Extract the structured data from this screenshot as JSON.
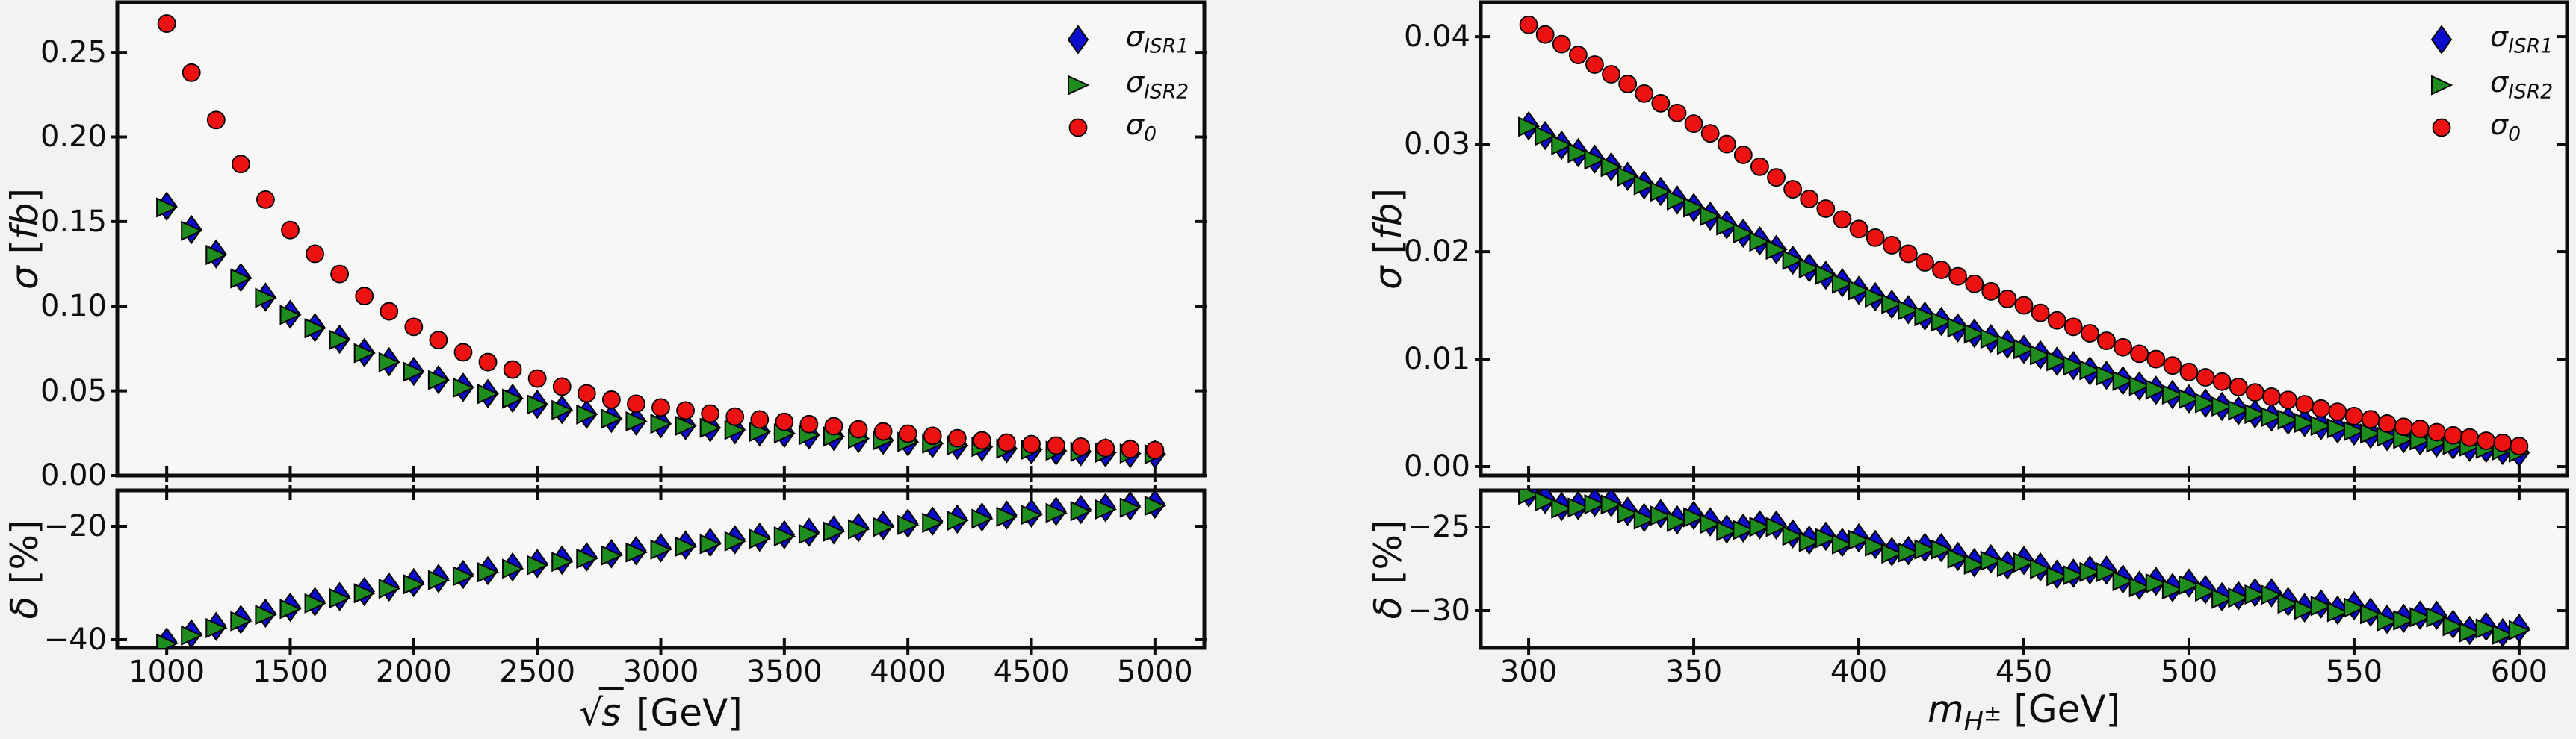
{
  "figure": {
    "background": "#f2f2f1",
    "axes_background": "#f7f7f6"
  },
  "colors": {
    "sigma_isr1": "#0a0ccd",
    "sigma_isr2": "#1f8c1f",
    "sigma0": "#ec1212",
    "marker_edge": "#000000",
    "axis": "#0d0d0d"
  },
  "legend": {
    "items": [
      {
        "sym": "σ",
        "sub": "ISR1",
        "series": "sigma_isr1",
        "marker": "diamond"
      },
      {
        "sym": "σ",
        "sub": "ISR2",
        "series": "sigma_isr2",
        "marker": "triangle"
      },
      {
        "sym": "σ",
        "sub": "0",
        "series": "sigma0",
        "marker": "circle"
      }
    ]
  },
  "chart_data": [
    {
      "type": "scatter",
      "panel": "left",
      "title": "",
      "xlabel": {
        "kind": "sqrt",
        "var": "s",
        "unit": "[GeV]"
      },
      "ylabel_main": {
        "sym": "σ",
        "unit": "[fb]"
      },
      "ylabel_ratio": {
        "sym": "δ",
        "unit": "[%]"
      },
      "xlim": [
        800,
        5200
      ],
      "ylim_main": [
        0.0,
        0.2796
      ],
      "ylim_ratio": [
        -41.45,
        -13.68
      ],
      "xticks": {
        "values": [
          1000,
          1500,
          2000,
          2500,
          3000,
          3500,
          4000,
          4500,
          5000
        ],
        "labels": [
          "1000",
          "1500",
          "2000",
          "2500",
          "3000",
          "3500",
          "4000",
          "4500",
          "5000"
        ]
      },
      "yticks_main": {
        "values": [
          0.25,
          0.2,
          0.15,
          0.1,
          0.05,
          0.0
        ],
        "labels": [
          "0.25",
          "0.20",
          "0.15",
          "0.10",
          "0.05",
          "0.00"
        ]
      },
      "yticks_ratio": {
        "values": [
          -20,
          -40
        ],
        "labels": [
          "−20",
          "−40"
        ]
      },
      "x": [
        1000,
        1100,
        1200,
        1300,
        1400,
        1500,
        1600,
        1700,
        1800,
        1900,
        2000,
        2100,
        2200,
        2300,
        2400,
        2500,
        2600,
        2700,
        2800,
        2900,
        3000,
        3100,
        3200,
        3300,
        3400,
        3500,
        3600,
        3700,
        3800,
        3900,
        4000,
        4100,
        4200,
        4300,
        4400,
        4500,
        4600,
        4700,
        4800,
        4900,
        5000
      ],
      "sigma0": [
        0.267,
        0.238,
        0.21,
        0.184,
        0.163,
        0.145,
        0.131,
        0.119,
        0.106,
        0.097,
        0.0878,
        0.08,
        0.0728,
        0.067,
        0.0626,
        0.0573,
        0.0525,
        0.0485,
        0.0448,
        0.0424,
        0.0402,
        0.0384,
        0.0366,
        0.0348,
        0.0331,
        0.0317,
        0.0303,
        0.0291,
        0.0273,
        0.026,
        0.0247,
        0.0234,
        0.022,
        0.0207,
        0.0194,
        0.0185,
        0.0177,
        0.017,
        0.0162,
        0.0156,
        0.015
      ],
      "sigma_isr1": [
        0.1591,
        0.1453,
        0.1309,
        0.117,
        0.1054,
        0.0953,
        0.0874,
        0.0805,
        0.0726,
        0.0672,
        0.0615,
        0.0566,
        0.0521,
        0.0484,
        0.0456,
        0.0421,
        0.0389,
        0.0362,
        0.0337,
        0.0321,
        0.0306,
        0.0294,
        0.0282,
        0.027,
        0.0258,
        0.0249,
        0.0239,
        0.0231,
        0.0218,
        0.0208,
        0.0199,
        0.0189,
        0.0179,
        0.0169,
        0.0159,
        0.0152,
        0.0146,
        0.0141,
        0.0135,
        0.013,
        0.0126
      ],
      "delta_isr1": [
        -40.4,
        -38.96,
        -37.65,
        -36.44,
        -35.32,
        -34.28,
        -33.3,
        -32.39,
        -31.52,
        -30.71,
        -29.93,
        -29.2,
        -28.49,
        -27.82,
        -27.18,
        -26.56,
        -25.97,
        -25.4,
        -24.85,
        -24.32,
        -23.81,
        -23.31,
        -22.84,
        -22.37,
        -21.92,
        -21.49,
        -21.06,
        -20.65,
        -20.24,
        -19.85,
        -19.47,
        -19.1,
        -18.73,
        -18.38,
        -18.03,
        -17.69,
        -17.36,
        -17.04,
        -16.72,
        -16.41,
        -16.1
      ],
      "delta_isr2": [
        -40.7,
        -39.26,
        -37.95,
        -36.74,
        -35.62,
        -34.58,
        -33.6,
        -32.69,
        -31.82,
        -31.01,
        -30.23,
        -29.5,
        -28.79,
        -28.12,
        -27.48,
        -26.86,
        -26.27,
        -25.7,
        -25.15,
        -24.62,
        -24.11,
        -23.61,
        -23.14,
        -22.67,
        -22.22,
        -21.79,
        -21.36,
        -20.95,
        -20.54,
        -20.15,
        -19.77,
        -19.4,
        -19.03,
        -18.68,
        -18.33,
        -17.99,
        -17.66,
        -17.34,
        -17.02,
        -16.71,
        -16.4
      ]
    },
    {
      "type": "scatter",
      "panel": "right",
      "title": "",
      "xlabel": {
        "kind": "sub",
        "base": "m",
        "sub": "H",
        "sup": "±",
        "unit": "[GeV]"
      },
      "ylabel_main": {
        "sym": "σ",
        "unit": "[fb]"
      },
      "ylabel_ratio": {
        "sym": "δ",
        "unit": "[%]"
      },
      "xlim": [
        285.5,
        614.5
      ],
      "ylim_main": [
        -0.00083,
        0.0432
      ],
      "ylim_ratio": [
        -32.23,
        -22.81
      ],
      "xticks": {
        "values": [
          300,
          350,
          400,
          450,
          500,
          550,
          600
        ],
        "labels": [
          "300",
          "350",
          "400",
          "450",
          "500",
          "550",
          "600"
        ]
      },
      "yticks_main": {
        "values": [
          0.04,
          0.03,
          0.02,
          0.01,
          0.0
        ],
        "labels": [
          "0.04",
          "0.03",
          "0.02",
          "0.01",
          "0.00"
        ]
      },
      "yticks_ratio": {
        "values": [
          -25,
          -30
        ],
        "labels": [
          "−25",
          "−30"
        ]
      },
      "x": [
        300,
        305,
        310,
        315,
        320,
        325,
        330,
        335,
        340,
        345,
        350,
        355,
        360,
        365,
        370,
        375,
        380,
        385,
        390,
        395,
        400,
        405,
        410,
        415,
        420,
        425,
        430,
        435,
        440,
        445,
        450,
        455,
        460,
        465,
        470,
        475,
        480,
        485,
        490,
        495,
        500,
        505,
        510,
        515,
        520,
        525,
        530,
        535,
        540,
        545,
        550,
        555,
        560,
        565,
        570,
        575,
        580,
        585,
        590,
        595,
        600
      ],
      "sigma0": [
        0.0411,
        0.0402,
        0.0393,
        0.0383,
        0.0374,
        0.0365,
        0.0356,
        0.0347,
        0.0338,
        0.0329,
        0.0319,
        0.031,
        0.03,
        0.029,
        0.0279,
        0.0269,
        0.0258,
        0.0249,
        0.024,
        0.023,
        0.0221,
        0.0213,
        0.0206,
        0.0198,
        0.019,
        0.0183,
        0.0177,
        0.017,
        0.0163,
        0.0156,
        0.015,
        0.0143,
        0.0136,
        0.013,
        0.0124,
        0.0117,
        0.0111,
        0.0105,
        0.01,
        0.0094,
        0.0088,
        0.0083,
        0.0079,
        0.0074,
        0.0069,
        0.0065,
        0.0062,
        0.0058,
        0.0054,
        0.0051,
        0.0047,
        0.0044,
        0.004,
        0.0037,
        0.0035,
        0.0032,
        0.0029,
        0.0027,
        0.0024,
        0.0022,
        0.0019
      ],
      "sigma_isr1": [
        0.0317,
        0.0308,
        0.0299,
        0.0292,
        0.0286,
        0.0279,
        0.027,
        0.0262,
        0.0256,
        0.0248,
        0.0241,
        0.0233,
        0.0225,
        0.0217,
        0.021,
        0.0202,
        0.0192,
        0.0185,
        0.0178,
        0.0171,
        0.0164,
        0.0158,
        0.0151,
        0.0146,
        0.014,
        0.0135,
        0.0129,
        0.0124,
        0.0119,
        0.0114,
        0.0109,
        0.0104,
        0.0098,
        0.0094,
        0.0089,
        0.0085,
        0.008,
        0.0075,
        0.0071,
        0.0067,
        0.0063,
        0.0059,
        0.0056,
        0.0052,
        0.0049,
        0.0046,
        0.0043,
        0.0041,
        0.0038,
        0.0035,
        0.0033,
        0.003,
        0.0028,
        0.0026,
        0.0024,
        0.0022,
        0.002,
        0.0018,
        0.0017,
        0.0015,
        0.0013
      ],
      "delta_isr1": [
        -22.95,
        -23.34,
        -23.77,
        -23.71,
        -23.52,
        -23.53,
        -24.06,
        -24.43,
        -24.2,
        -24.57,
        -24.3,
        -24.69,
        -25.12,
        -25.06,
        -24.87,
        -24.88,
        -25.41,
        -25.78,
        -25.55,
        -25.92,
        -25.65,
        -26.04,
        -26.47,
        -26.41,
        -26.22,
        -26.23,
        -26.76,
        -27.13,
        -26.9,
        -27.27,
        -27.0,
        -27.39,
        -27.82,
        -27.76,
        -27.57,
        -27.58,
        -28.11,
        -28.48,
        -28.25,
        -28.62,
        -28.35,
        -28.74,
        -29.17,
        -29.11,
        -28.92,
        -28.93,
        -29.46,
        -29.83,
        -29.6,
        -29.97,
        -29.7,
        -30.09,
        -30.52,
        -30.46,
        -30.27,
        -30.28,
        -30.81,
        -31.18,
        -30.95,
        -31.32,
        -31.05
      ],
      "delta_isr2": [
        -23.07,
        -23.46,
        -23.89,
        -23.83,
        -23.64,
        -23.65,
        -24.18,
        -24.55,
        -24.32,
        -24.69,
        -24.42,
        -24.81,
        -25.24,
        -25.18,
        -24.99,
        -25.0,
        -25.53,
        -25.9,
        -25.67,
        -26.04,
        -25.77,
        -26.16,
        -26.59,
        -26.53,
        -26.34,
        -26.35,
        -26.88,
        -27.25,
        -27.02,
        -27.39,
        -27.12,
        -27.51,
        -27.94,
        -27.88,
        -27.69,
        -27.7,
        -28.23,
        -28.6,
        -28.37,
        -28.74,
        -28.47,
        -28.86,
        -29.29,
        -29.23,
        -29.04,
        -29.05,
        -29.58,
        -29.95,
        -29.72,
        -30.09,
        -29.82,
        -30.21,
        -30.64,
        -30.58,
        -30.39,
        -30.4,
        -30.93,
        -31.3,
        -31.07,
        -31.44,
        -31.17
      ]
    }
  ]
}
